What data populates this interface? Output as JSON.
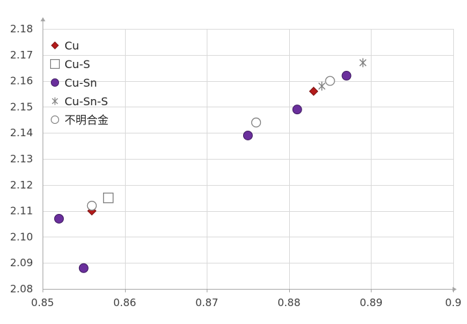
{
  "colors": {
    "cu": "#b31b1b",
    "cu_edge": "#7a1010",
    "cu_sn": "#6a2f9c",
    "cu_sn_edge": "#3d1a5e",
    "open_marker": "#7f7f7f",
    "grid": "#d9d9d9",
    "axis": "#a6a6a6",
    "tick_text": "#404040"
  },
  "chart_data": {
    "type": "scatter",
    "title": "",
    "xlabel": "",
    "ylabel": "",
    "xlim": [
      0.85,
      0.9
    ],
    "ylim": [
      2.08,
      2.18
    ],
    "x_ticks": [
      0.85,
      0.86,
      0.87,
      0.88,
      0.89,
      0.9
    ],
    "x_tick_labels": [
      "0.85",
      "0.86",
      "0.87",
      "0.88",
      "0.89",
      "0.9"
    ],
    "y_ticks": [
      2.08,
      2.09,
      2.1,
      2.11,
      2.12,
      2.13,
      2.14,
      2.15,
      2.16,
      2.17,
      2.18
    ],
    "y_tick_labels": [
      "2.08",
      "2.09",
      "2.10",
      "2.11",
      "2.12",
      "2.13",
      "2.14",
      "2.15",
      "2.16",
      "2.17",
      "2.18"
    ],
    "grid": true,
    "legend_position": "top-left",
    "series": [
      {
        "name": "Cu",
        "marker": "diamond",
        "color": "#b31b1b",
        "points": [
          [
            0.856,
            2.11
          ],
          [
            0.883,
            2.156
          ]
        ]
      },
      {
        "name": "Cu-S",
        "marker": "square-open",
        "color": "#7f7f7f",
        "points": [
          [
            0.858,
            2.115
          ]
        ]
      },
      {
        "name": "Cu-Sn",
        "marker": "circle",
        "color": "#6a2f9c",
        "points": [
          [
            0.852,
            2.107
          ],
          [
            0.855,
            2.088
          ],
          [
            0.875,
            2.139
          ],
          [
            0.881,
            2.149
          ],
          [
            0.887,
            2.162
          ]
        ]
      },
      {
        "name": "Cu-Sn-S",
        "marker": "asterisk",
        "color": "#7f7f7f",
        "points": [
          [
            0.884,
            2.158
          ],
          [
            0.889,
            2.167
          ]
        ]
      },
      {
        "name": "不明合金",
        "marker": "circle-open",
        "color": "#7f7f7f",
        "points": [
          [
            0.856,
            2.112
          ],
          [
            0.876,
            2.144
          ],
          [
            0.885,
            2.16
          ]
        ]
      }
    ]
  }
}
